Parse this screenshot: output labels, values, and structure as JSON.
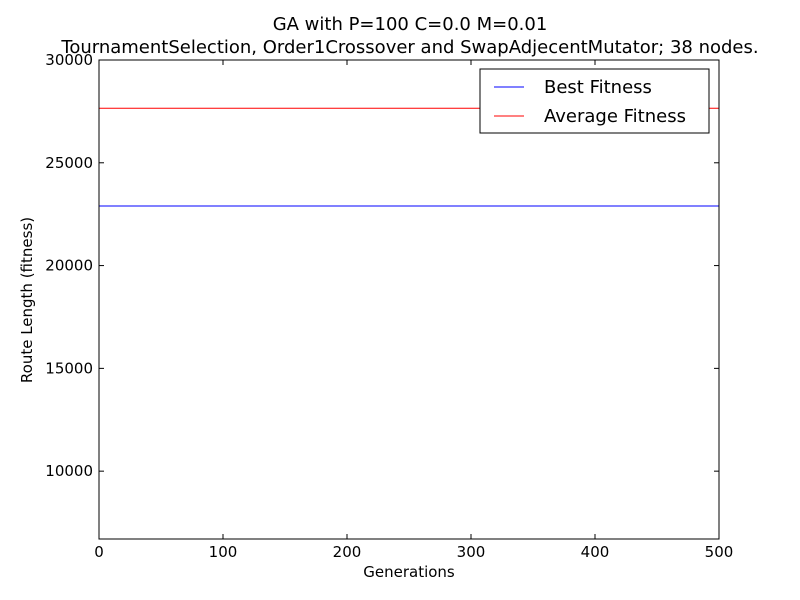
{
  "chart_data": {
    "type": "line",
    "title": "GA with P=100 C=0.0 M=0.01",
    "subtitle": "TournamentSelection, Order1Crossover and SwapAdjecentMutator; 38 nodes.",
    "xlabel": "Generations",
    "ylabel": "Route Length (fitness)",
    "xlim": [
      0,
      500
    ],
    "ylim": [
      6700,
      30000
    ],
    "xticks": [
      0,
      100,
      200,
      300,
      400,
      500
    ],
    "yticks": [
      10000,
      15000,
      20000,
      25000,
      30000
    ],
    "grid": false,
    "legend_position": "top-right",
    "series": [
      {
        "name": "Best Fitness",
        "color": "#0000ff",
        "x": [
          0,
          500
        ],
        "y": [
          22900,
          22900
        ]
      },
      {
        "name": "Average Fitness",
        "color": "#ff0000",
        "x": [
          0,
          500
        ],
        "y": [
          27650,
          27650
        ]
      }
    ]
  }
}
